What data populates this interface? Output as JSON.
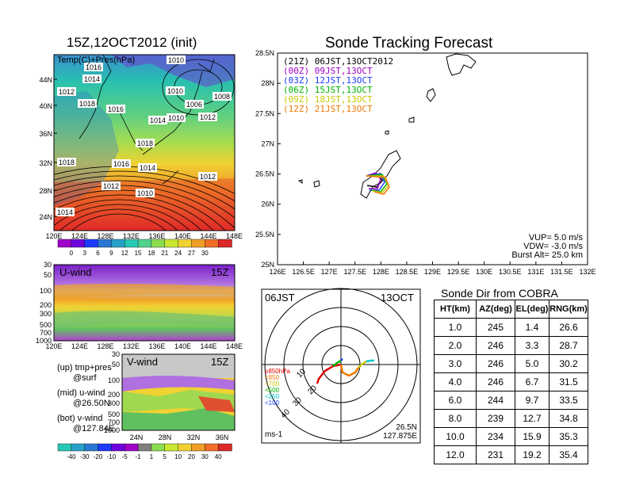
{
  "left": {
    "title": "15Z,12OCT2012 (init)",
    "top_panel": {
      "label": "Temp(C)+Pres(hPa)",
      "lat_ticks": [
        "44N",
        "40N",
        "36N",
        "32N",
        "28N",
        "24N"
      ],
      "lon_ticks": [
        "120E",
        "124E",
        "128E",
        "132E",
        "136E",
        "140E",
        "144E",
        "148E"
      ],
      "isobars": [
        "1010",
        "1016",
        "1014",
        "1010",
        "1008",
        "1006",
        "1012",
        "1018",
        "1016",
        "1012",
        "1014",
        "1010",
        "1018",
        "1018",
        "1016",
        "1014",
        "1012",
        "1012",
        "1010",
        "1014"
      ],
      "colorbar": {
        "labels": [
          "0",
          "3",
          "6",
          "9",
          "12",
          "15",
          "18",
          "21",
          "24",
          "27",
          "30"
        ],
        "colors": [
          "#a000c8",
          "#6e00dc",
          "#1e3cff",
          "#2878d2",
          "#28a0c8",
          "#28c8b4",
          "#50d28c",
          "#8cdc50",
          "#c8e632",
          "#f0d232",
          "#f0a028",
          "#f06e28",
          "#dc2828"
        ]
      }
    },
    "u_panel": {
      "label": "U-wind",
      "time": "15Z",
      "p_ticks": [
        "30",
        "50",
        "100",
        "200",
        "300",
        "500",
        "700",
        "1000"
      ],
      "lon_ticks": [
        "120E",
        "124E",
        "128E",
        "132E",
        "136E",
        "140E",
        "144E",
        "148E"
      ]
    },
    "v_panel": {
      "label": "V-wind",
      "time": "15Z",
      "p_ticks": [
        "30",
        "50",
        "100",
        "200",
        "300",
        "500",
        "700",
        "1000"
      ],
      "lat_ticks": [
        "24N",
        "28N",
        "32N",
        "36N"
      ]
    },
    "notes": [
      {
        "line1": "(up) tmp+pres",
        "line2": "@surf"
      },
      {
        "line1": "(mid) u-wind",
        "line2": "@26.50N"
      },
      {
        "line1": "(bot) v-wind",
        "line2": "@127.84E"
      }
    ],
    "wind_colorbar": {
      "labels": [
        "-40",
        "-30",
        "-20",
        "-10",
        "-5",
        "-1",
        "1",
        "5",
        "10",
        "20",
        "30",
        "40"
      ],
      "colors": [
        "#28c8b4",
        "#28a0c8",
        "#2878d2",
        "#1e3cff",
        "#6e00dc",
        "#a000c8",
        "#808080",
        "#8cdc50",
        "#c8e632",
        "#f0d232",
        "#f0a028",
        "#f06e28",
        "#dc2828"
      ]
    }
  },
  "tracking": {
    "title": "Sonde Tracking Forecast",
    "lat_ticks": [
      "28.5N",
      "28N",
      "27.5N",
      "27N",
      "26.5N",
      "26N",
      "25.5N",
      "25N"
    ],
    "lon_ticks": [
      "126E",
      "126.5E",
      "127E",
      "127.5E",
      "128E",
      "128.5E",
      "129E",
      "129.5E",
      "130E",
      "130.5E",
      "131E",
      "131.5E",
      "132E"
    ],
    "legend": [
      {
        "text": "(21Z) 06JST,13OCT2012",
        "color": "#000000"
      },
      {
        "text": "(00Z) 09JST,13OCT",
        "color": "#a000c8"
      },
      {
        "text": "(03Z) 12JST,13OCT",
        "color": "#1e3cff"
      },
      {
        "text": "(06Z) 15JST,13OCT",
        "color": "#00b400"
      },
      {
        "text": "(09Z) 18JST,13OCT",
        "color": "#c8c800"
      },
      {
        "text": "(12Z) 21JST,13OCT",
        "color": "#f07800"
      }
    ],
    "params": {
      "vup": "VUP=  5.0 m/s",
      "vdw": "VDW= -3.0 m/s",
      "burst": "Burst Alt= 25.0 km"
    }
  },
  "polar": {
    "time_label": "06JST",
    "date_label": "13OCT",
    "lat_label": "26.5N",
    "lon_label": "127.875E",
    "unit": "ms-1",
    "ring_labels": [
      "10",
      "20",
      "30",
      "40"
    ],
    "level_labels": [
      {
        "text": "≥850hPa",
        "color": "#e00000"
      },
      {
        "text": "<850",
        "color": "#f07800"
      },
      {
        "text": "<700",
        "color": "#c8c800"
      },
      {
        "text": "<500",
        "color": "#00b400"
      },
      {
        "text": "<250",
        "color": "#00c8c8"
      },
      {
        "text": "<100",
        "color": "#1e3cff"
      }
    ]
  },
  "sonde_dir": {
    "title": "Sonde Dir from COBRA",
    "headers": [
      "HT(km)",
      "AZ(deg)",
      "EL(deg)",
      "RNG(km)"
    ],
    "rows": [
      [
        "1.0",
        "245",
        "1.4",
        "26.6"
      ],
      [
        "2.0",
        "246",
        "3.3",
        "28.7"
      ],
      [
        "3.0",
        "246",
        "5.0",
        "30.2"
      ],
      [
        "4.0",
        "246",
        "6.7",
        "31.5"
      ],
      [
        "6.0",
        "244",
        "9.7",
        "33.5"
      ],
      [
        "8.0",
        "239",
        "12.7",
        "34.8"
      ],
      [
        "10.0",
        "234",
        "15.9",
        "35.3"
      ],
      [
        "12.0",
        "231",
        "19.2",
        "35.4"
      ]
    ]
  },
  "chart_data": [
    {
      "type": "heatmap",
      "title": "15Z,12OCT2012 (init)",
      "annotation": "Temp(C)+Pres(hPa)",
      "x_ticks": [
        "120E",
        "124E",
        "128E",
        "132E",
        "136E",
        "140E",
        "144E",
        "148E"
      ],
      "y_ticks": [
        "24N",
        "28N",
        "32N",
        "36N",
        "40N",
        "44N"
      ],
      "colorbar_values": [
        0,
        3,
        6,
        9,
        12,
        15,
        18,
        21,
        24,
        27,
        30
      ],
      "contour_labels_hPa": [
        1006,
        1008,
        1010,
        1012,
        1014,
        1016,
        1018
      ]
    },
    {
      "type": "heatmap",
      "annotation": "U-wind",
      "x_ticks": [
        "120E",
        "124E",
        "128E",
        "132E",
        "136E",
        "140E",
        "144E",
        "148E"
      ],
      "y_ticks": [
        30,
        50,
        100,
        200,
        300,
        500,
        700,
        1000
      ]
    },
    {
      "type": "heatmap",
      "annotation": "V-wind",
      "x_ticks": [
        "24N",
        "28N",
        "32N",
        "36N"
      ],
      "y_ticks": [
        30,
        50,
        100,
        200,
        300,
        500,
        700,
        1000
      ],
      "colorbar_values": [
        -40,
        -30,
        -20,
        -10,
        -5,
        -1,
        1,
        5,
        10,
        20,
        30,
        40
      ]
    },
    {
      "type": "line",
      "title": "Sonde Tracking Forecast",
      "xlim": [
        126,
        132
      ],
      "ylim": [
        25,
        28.5
      ],
      "x_ticks": [
        "126E",
        "126.5E",
        "127E",
        "127.5E",
        "128E",
        "128.5E",
        "129E",
        "129.5E",
        "130E",
        "130.5E",
        "131E",
        "131.5E",
        "132E"
      ],
      "y_ticks": [
        "25N",
        "25.5N",
        "26N",
        "26.5N",
        "27N",
        "27.5N",
        "28N",
        "28.5N"
      ]
    },
    {
      "type": "table",
      "title": "Sonde Dir from COBRA",
      "columns": [
        "HT(km)",
        "AZ(deg)",
        "EL(deg)",
        "RNG(km)"
      ],
      "rows": [
        [
          1.0,
          245,
          1.4,
          26.6
        ],
        [
          2.0,
          246,
          3.3,
          28.7
        ],
        [
          3.0,
          246,
          5.0,
          30.2
        ],
        [
          4.0,
          246,
          6.7,
          31.5
        ],
        [
          6.0,
          244,
          9.7,
          33.5
        ],
        [
          8.0,
          239,
          12.7,
          34.8
        ],
        [
          10.0,
          234,
          15.9,
          35.3
        ],
        [
          12.0,
          231,
          19.2,
          35.4
        ]
      ]
    }
  ]
}
